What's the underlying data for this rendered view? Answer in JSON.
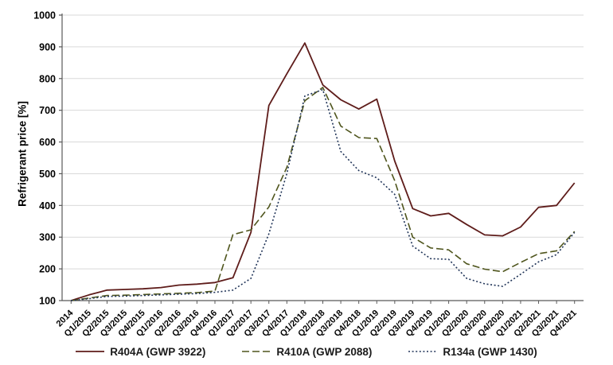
{
  "chart_data": {
    "type": "line",
    "title": "",
    "xlabel": "",
    "ylabel": "Refrigerant price [%]",
    "ylim": [
      100,
      1000
    ],
    "y_tick_step": 100,
    "y_ticks": [
      100,
      200,
      300,
      400,
      500,
      600,
      700,
      800,
      900,
      1000
    ],
    "grid": "horizontal",
    "legend_position": "bottom",
    "categories": [
      "2014",
      "Q1/2015",
      "Q2/2015",
      "Q3/2015",
      "Q4/2015",
      "Q1/2016",
      "Q2/2016",
      "Q3/2016",
      "Q4/2016",
      "Q1/2017",
      "Q2/2017",
      "Q3/2017",
      "Q4/2017",
      "Q1/2018",
      "Q2/2018",
      "Q3/2018",
      "Q4/2018",
      "Q1/2019",
      "Q2/2019",
      "Q3/2019",
      "Q4/2019",
      "Q1/2020",
      "Q2/2020",
      "Q3/2020",
      "Q4/2020",
      "Q1/2021",
      "Q2/2021",
      "Q3/2021",
      "Q4/2021"
    ],
    "series": [
      {
        "name": "R404A (GWP 3922)",
        "line_style": "solid",
        "color": "#5E1C1A",
        "values": [
          100,
          118,
          133,
          135,
          137,
          141,
          149,
          152,
          157,
          172,
          315,
          715,
          815,
          912,
          780,
          733,
          704,
          735,
          540,
          390,
          367,
          375,
          340,
          307,
          304,
          332,
          394,
          400,
          471
        ]
      },
      {
        "name": "R410A (GWP 2088)",
        "line_style": "dashed",
        "color": "#4F551D",
        "values": [
          100,
          108,
          116,
          117,
          119,
          121,
          123,
          125,
          130,
          308,
          323,
          395,
          520,
          730,
          772,
          650,
          614,
          611,
          478,
          300,
          266,
          260,
          216,
          199,
          191,
          220,
          248,
          257,
          318
        ]
      },
      {
        "name": "R134a (GWP 1430)",
        "line_style": "dotted",
        "color": "#203458",
        "values": [
          100,
          106,
          113,
          114,
          116,
          118,
          120,
          122,
          126,
          133,
          170,
          310,
          500,
          745,
          765,
          570,
          510,
          487,
          435,
          272,
          232,
          230,
          170,
          153,
          145,
          183,
          222,
          245,
          315
        ]
      }
    ],
    "colors": {
      "grid": "#D9D9D9",
      "axis": "#595959",
      "tick_label": "#000000"
    }
  }
}
